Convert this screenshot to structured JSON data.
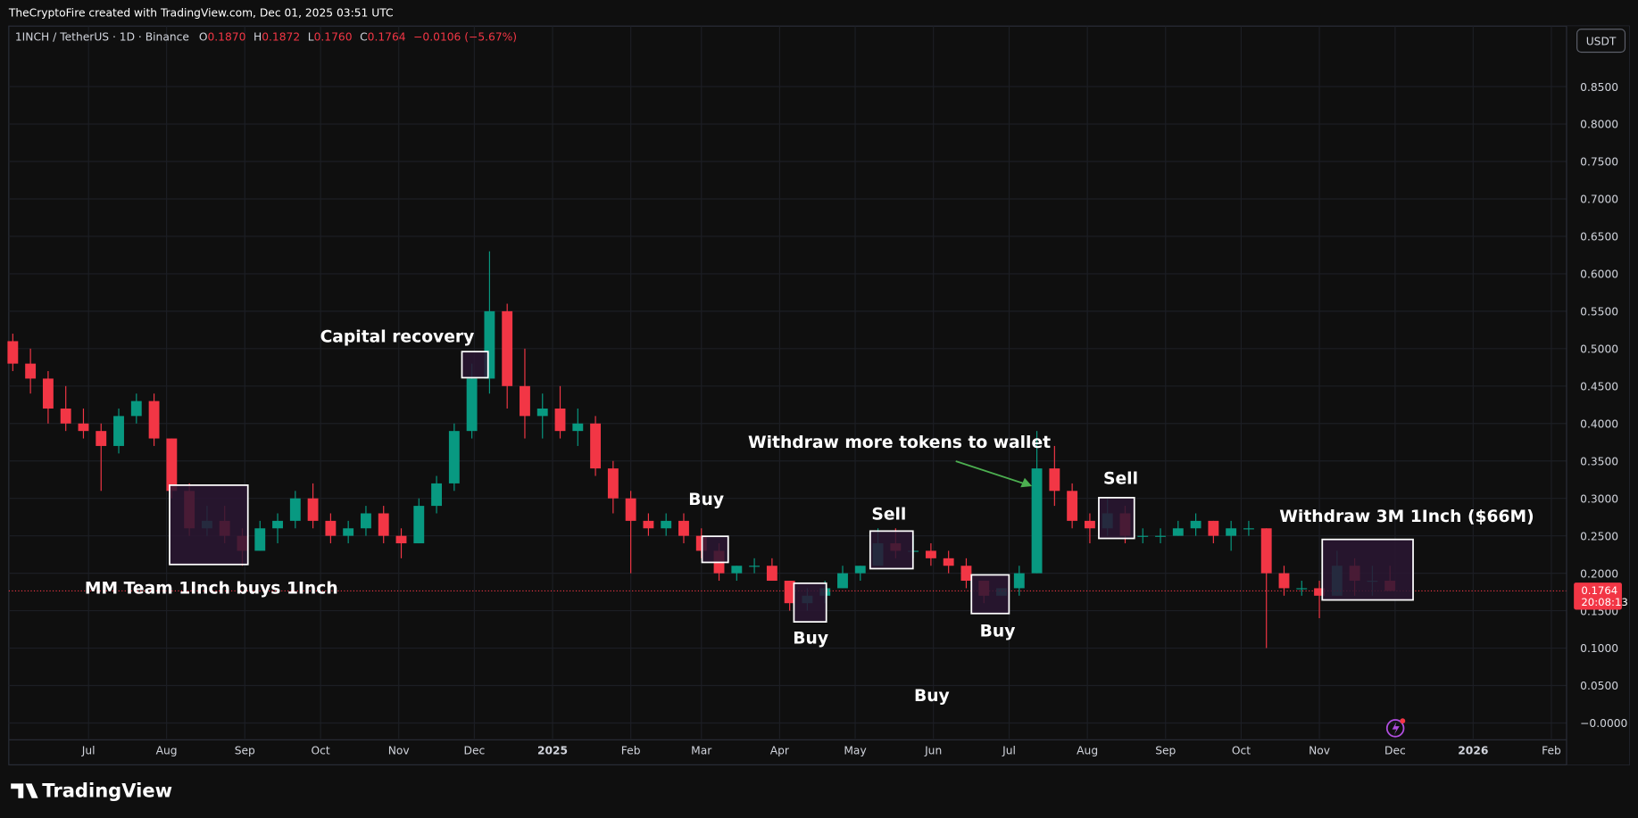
{
  "header": {
    "attribution": "TheCryptoFire created with TradingView.com, Dec 01, 2025 03:51 UTC",
    "symbol": "1INCH / TetherUS · 1D · Binance",
    "ohlc": [
      {
        "label": "O",
        "value": "0.1870"
      },
      {
        "label": "H",
        "value": "0.1872"
      },
      {
        "label": "L",
        "value": "0.1760"
      },
      {
        "label": "C",
        "value": "0.1764"
      }
    ],
    "change": "−0.0106 (−5.67%)",
    "currency": "USDT"
  },
  "chart_data": {
    "type": "candlestick",
    "categories": [
      null,
      null,
      null,
      null,
      null,
      null,
      null,
      null,
      null,
      null,
      null,
      null,
      null,
      null,
      null,
      null,
      null,
      null,
      null,
      null,
      null,
      null,
      null,
      null,
      null,
      null,
      null,
      null,
      null,
      null,
      null,
      null,
      null,
      null,
      null,
      null,
      null,
      null,
      null,
      null,
      null,
      null,
      null,
      null,
      null,
      null,
      null,
      null,
      null,
      null,
      null,
      null,
      null,
      null,
      null,
      null,
      null,
      null,
      null,
      null,
      null,
      null,
      null,
      null,
      null,
      null,
      null,
      null,
      null,
      null,
      null,
      null,
      null,
      null,
      null,
      null,
      null,
      null,
      null
    ],
    "open": [
      0.51,
      0.48,
      0.46,
      0.42,
      0.4,
      0.39,
      0.37,
      0.41,
      0.43,
      0.38,
      0.31,
      0.26,
      0.27,
      0.25,
      0.23,
      0.26,
      0.27,
      0.3,
      0.27,
      0.25,
      0.26,
      0.28,
      0.25,
      0.24,
      0.29,
      0.32,
      0.39,
      0.46,
      0.55,
      0.45,
      0.41,
      0.42,
      0.39,
      0.4,
      0.34,
      0.3,
      0.27,
      0.26,
      0.27,
      0.25,
      0.23,
      0.2,
      0.21,
      0.21,
      0.19,
      0.16,
      0.17,
      0.18,
      0.2,
      0.21,
      0.24,
      0.23,
      0.23,
      0.22,
      0.21,
      0.19,
      0.17,
      0.18,
      0.2,
      0.34,
      0.31,
      0.27,
      0.26,
      0.28,
      0.25,
      0.25,
      0.25,
      0.26,
      0.27,
      0.25,
      0.26,
      0.26,
      0.2,
      0.18,
      0.18,
      0.17,
      0.21,
      0.19,
      0.19
    ],
    "high": [
      0.52,
      0.5,
      0.47,
      0.45,
      0.42,
      0.4,
      0.42,
      0.44,
      0.44,
      0.38,
      0.32,
      0.29,
      0.29,
      0.26,
      0.27,
      0.28,
      0.31,
      0.32,
      0.28,
      0.27,
      0.29,
      0.29,
      0.26,
      0.3,
      0.33,
      0.4,
      0.48,
      0.63,
      0.56,
      0.5,
      0.44,
      0.45,
      0.42,
      0.41,
      0.35,
      0.31,
      0.28,
      0.28,
      0.28,
      0.26,
      0.24,
      0.21,
      0.22,
      0.22,
      0.19,
      0.18,
      0.19,
      0.21,
      0.21,
      0.26,
      0.26,
      0.25,
      0.24,
      0.23,
      0.22,
      0.19,
      0.18,
      0.21,
      0.39,
      0.37,
      0.32,
      0.28,
      0.3,
      0.29,
      0.26,
      0.26,
      0.27,
      0.28,
      0.27,
      0.27,
      0.27,
      0.26,
      0.21,
      0.19,
      0.19,
      0.23,
      0.22,
      0.21,
      0.21
    ],
    "low": [
      0.47,
      0.44,
      0.4,
      0.39,
      0.38,
      0.31,
      0.36,
      0.4,
      0.37,
      0.3,
      0.25,
      0.25,
      0.24,
      0.21,
      0.23,
      0.24,
      0.26,
      0.26,
      0.24,
      0.24,
      0.25,
      0.24,
      0.22,
      0.24,
      0.28,
      0.31,
      0.38,
      0.44,
      0.42,
      0.38,
      0.38,
      0.38,
      0.37,
      0.33,
      0.28,
      0.2,
      0.25,
      0.25,
      0.24,
      0.22,
      0.19,
      0.19,
      0.2,
      0.19,
      0.15,
      0.15,
      0.16,
      0.18,
      0.19,
      0.21,
      0.22,
      0.22,
      0.21,
      0.2,
      0.18,
      0.16,
      0.17,
      0.17,
      0.2,
      0.29,
      0.26,
      0.24,
      0.25,
      0.24,
      0.24,
      0.24,
      0.25,
      0.25,
      0.24,
      0.23,
      0.25,
      0.1,
      0.17,
      0.17,
      0.14,
      0.17,
      0.17,
      0.17,
      0.176
    ],
    "close": [
      0.48,
      0.46,
      0.42,
      0.4,
      0.39,
      0.37,
      0.41,
      0.43,
      0.38,
      0.31,
      0.26,
      0.27,
      0.25,
      0.23,
      0.26,
      0.27,
      0.3,
      0.27,
      0.25,
      0.26,
      0.28,
      0.25,
      0.24,
      0.29,
      0.32,
      0.39,
      0.46,
      0.55,
      0.45,
      0.41,
      0.42,
      0.39,
      0.4,
      0.34,
      0.3,
      0.27,
      0.26,
      0.27,
      0.25,
      0.23,
      0.2,
      0.21,
      0.21,
      0.19,
      0.16,
      0.17,
      0.18,
      0.2,
      0.21,
      0.24,
      0.23,
      0.23,
      0.22,
      0.21,
      0.19,
      0.17,
      0.18,
      0.2,
      0.34,
      0.31,
      0.27,
      0.26,
      0.28,
      0.25,
      0.25,
      0.25,
      0.26,
      0.27,
      0.25,
      0.26,
      0.26,
      0.2,
      0.18,
      0.18,
      0.17,
      0.21,
      0.19,
      0.19,
      0.1764
    ],
    "up_color": "#089981",
    "down_color": "#f23645",
    "xlim": [
      -0.7,
      88
    ],
    "xticks": [
      {
        "value": 4.29,
        "label": "Jul"
      },
      {
        "value": 8.71,
        "label": "Aug"
      },
      {
        "value": 13.14,
        "label": "Sep"
      },
      {
        "value": 17.43,
        "label": "Oct"
      },
      {
        "value": 21.86,
        "label": "Nov"
      },
      {
        "value": 26.14,
        "label": "Dec"
      },
      {
        "value": 30.57,
        "label": "2025"
      },
      {
        "value": 35,
        "label": "Feb"
      },
      {
        "value": 39,
        "label": "Mar"
      },
      {
        "value": 43.43,
        "label": "Apr"
      },
      {
        "value": 47.71,
        "label": "May"
      },
      {
        "value": 52.14,
        "label": "Jun"
      },
      {
        "value": 56.43,
        "label": "Jul"
      },
      {
        "value": 60.86,
        "label": "Aug"
      },
      {
        "value": 65.29,
        "label": "Sep"
      },
      {
        "value": 69.57,
        "label": "Oct"
      },
      {
        "value": 74,
        "label": "Nov"
      },
      {
        "value": 78.29,
        "label": "Dec"
      },
      {
        "value": 82.71,
        "label": "2026"
      },
      {
        "value": 87.14,
        "label": "Feb"
      }
    ],
    "ylim": [
      -0.021,
      0.896
    ],
    "yticks": [
      {
        "value": 0,
        "label": "−0.0000"
      },
      {
        "value": 0.05,
        "label": "0.0500"
      },
      {
        "value": 0.1,
        "label": "0.1000"
      },
      {
        "value": 0.15,
        "label": "0.1500"
      },
      {
        "value": 0.2,
        "label": "0.2000"
      },
      {
        "value": 0.25,
        "label": "0.2500"
      },
      {
        "value": 0.3,
        "label": "0.3000"
      },
      {
        "value": 0.35,
        "label": "0.3500"
      },
      {
        "value": 0.4,
        "label": "0.4000"
      },
      {
        "value": 0.45,
        "label": "0.4500"
      },
      {
        "value": 0.5,
        "label": "0.5000"
      },
      {
        "value": 0.55,
        "label": "0.5500"
      },
      {
        "value": 0.6,
        "label": "0.6000"
      },
      {
        "value": 0.65,
        "label": "0.6500"
      },
      {
        "value": 0.7,
        "label": "0.7000"
      },
      {
        "value": 0.75,
        "label": "0.7500"
      },
      {
        "value": 0.8,
        "label": "0.8000"
      },
      {
        "value": 0.85,
        "label": "0.8500"
      }
    ],
    "grid": true,
    "last_price_label": "0.1764",
    "countdown": "20:08:13",
    "annotations": [
      "Capital recovery",
      "Buy",
      "Sell",
      "Withdraw more tokens to wallet",
      "Sell",
      "Withdraw 3M 1Inch ($66M)",
      "MM Team 1Inch buys 1Inch",
      "Buy",
      "Buy",
      "Buy"
    ]
  },
  "footer": {
    "brand": "TradingView"
  }
}
